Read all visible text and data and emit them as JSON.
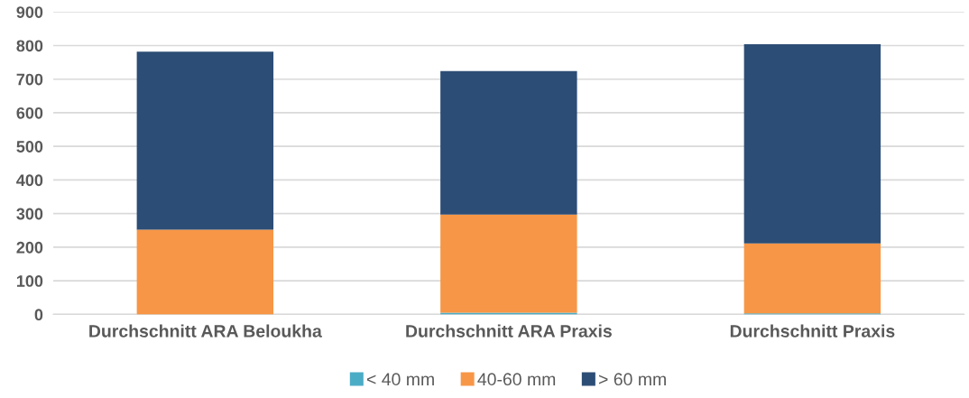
{
  "chart_data": {
    "type": "bar",
    "stacked": true,
    "categories": [
      "Durchschnitt ARA Beloukha",
      "Durchschnitt ARA Praxis",
      "Durchschnitt Praxis"
    ],
    "series": [
      {
        "name": "< 40 mm",
        "color": "#4bacc6",
        "values": [
          null,
          5,
          3
        ]
      },
      {
        "name": "40-60 mm",
        "color": "#f79646",
        "values": [
          252,
          292,
          208
        ]
      },
      {
        "name": "> 60 mm",
        "color": "#2c4d75",
        "values": [
          530,
          427,
          593
        ]
      }
    ],
    "ylim": [
      0,
      900
    ],
    "yticks": [
      0,
      100,
      200,
      300,
      400,
      500,
      600,
      700,
      800,
      900
    ],
    "grid": "y",
    "legend": "bottom"
  }
}
